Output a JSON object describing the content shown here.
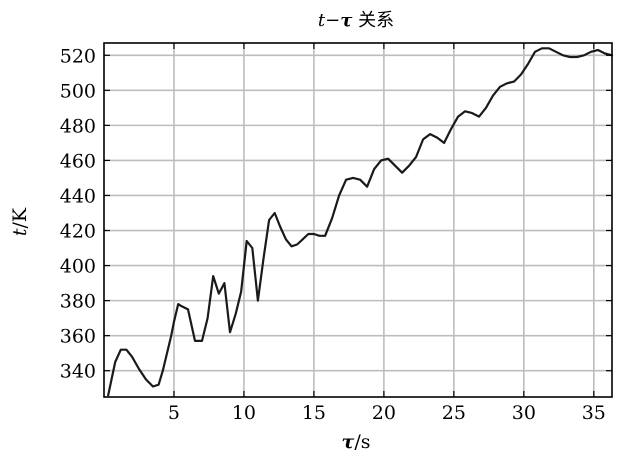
{
  "chart_data": {
    "type": "line",
    "title": "t−τ 关系",
    "xlabel": "τ/s",
    "ylabel": "t/K",
    "xlim": [
      0,
      36.3
    ],
    "ylim": [
      325,
      527
    ],
    "x_ticks": [
      5,
      10,
      15,
      20,
      25,
      30,
      35
    ],
    "y_ticks": [
      340,
      360,
      380,
      400,
      420,
      440,
      460,
      480,
      500,
      520
    ],
    "grid": true,
    "legend": "none",
    "line_color": "#1a1a1a",
    "series": [
      {
        "x": [
          0.3,
          0.8,
          1.2,
          1.6,
          2.0,
          2.5,
          3.0,
          3.5,
          3.9,
          4.2,
          4.5,
          4.8,
          5.0,
          5.3,
          5.5,
          6.0,
          6.5,
          7.0,
          7.4,
          7.8,
          8.2,
          8.6,
          9.0,
          9.4,
          9.8,
          10.2,
          10.6,
          11.0,
          11.4,
          11.8,
          12.2,
          12.6,
          13.0,
          13.4,
          13.8,
          14.2,
          14.6,
          15.0,
          15.4,
          15.8,
          16.3,
          16.8,
          17.3,
          17.8,
          18.3,
          18.8,
          19.3,
          19.8,
          20.3,
          20.8,
          21.3,
          21.8,
          22.3,
          22.8,
          23.3,
          23.8,
          24.3,
          24.8,
          25.3,
          25.8,
          26.3,
          26.8,
          27.3,
          27.8,
          28.3,
          28.8,
          29.3,
          29.8,
          30.3,
          30.8,
          31.3,
          31.8,
          32.3,
          32.8,
          33.3,
          33.8,
          34.3,
          34.8,
          35.3,
          35.8,
          36.3
        ],
        "values": [
          326,
          345,
          352,
          352,
          348,
          341,
          335,
          331,
          332,
          340,
          350,
          360,
          368,
          378,
          377,
          375,
          357,
          357,
          370,
          394,
          384,
          390,
          362,
          372,
          385,
          414,
          410,
          380,
          404,
          426,
          430,
          422,
          415,
          411,
          412,
          415,
          418,
          418,
          417,
          417,
          427,
          440,
          449,
          450,
          449,
          445,
          455,
          460,
          461,
          457,
          453,
          457,
          462,
          472,
          475,
          473,
          470,
          478,
          485,
          488,
          487,
          485,
          490,
          497,
          502,
          504,
          505,
          509,
          515,
          522,
          524,
          524,
          522,
          520,
          519,
          519,
          520,
          522,
          523,
          521,
          520
        ]
      }
    ]
  }
}
